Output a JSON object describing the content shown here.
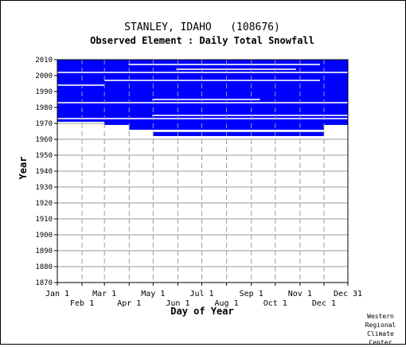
{
  "chart_data": {
    "type": "heatmap",
    "title": "STANLEY, IDAHO   (108676)",
    "subtitle": "Observed Element : Daily Total Snowfall",
    "xlabel": "Day of Year",
    "ylabel": "Year",
    "ylim": [
      1870,
      2010
    ],
    "y_ticks": [
      1870,
      1880,
      1890,
      1900,
      1910,
      1920,
      1930,
      1940,
      1950,
      1960,
      1970,
      1980,
      1990,
      2000,
      2010
    ],
    "x_ticks": [
      {
        "label": "Jan 1",
        "day": 1,
        "row": "upper"
      },
      {
        "label": "Feb 1",
        "day": 32,
        "row": "lower"
      },
      {
        "label": "Mar 1",
        "day": 60,
        "row": "upper"
      },
      {
        "label": "Apr 1",
        "day": 91,
        "row": "lower"
      },
      {
        "label": "May 1",
        "day": 121,
        "row": "upper"
      },
      {
        "label": "Jun 1",
        "day": 152,
        "row": "lower"
      },
      {
        "label": "Jul 1",
        "day": 182,
        "row": "upper"
      },
      {
        "label": "Aug 1",
        "day": 213,
        "row": "lower"
      },
      {
        "label": "Sep 1",
        "day": 244,
        "row": "upper"
      },
      {
        "label": "Oct 1",
        "day": 274,
        "row": "lower"
      },
      {
        "label": "Nov 1",
        "day": 305,
        "row": "upper"
      },
      {
        "label": "Dec 1",
        "day": 335,
        "row": "lower"
      },
      {
        "label": "Dec 31",
        "day": 365,
        "row": "upper"
      }
    ],
    "xlim": [
      1,
      365
    ],
    "grid": true,
    "data_color": "#0000ff",
    "coverage": [
      {
        "year_start": 1962,
        "year_end": 1965,
        "day_start": 121,
        "day_end": 335
      },
      {
        "year_start": 1966,
        "year_end": 1969,
        "day_start": 91,
        "day_end": 335
      },
      {
        "year_start": 1969,
        "year_end": 1971,
        "day_start": 60,
        "day_end": 365
      },
      {
        "year_start": 1971,
        "year_end": 2010,
        "day_start": 1,
        "day_end": 365
      }
    ],
    "gaps": [
      {
        "year": 1965,
        "day_start": 1,
        "day_end": 365
      },
      {
        "year": 1973,
        "day_start": 1,
        "day_end": 365
      },
      {
        "year": 1975,
        "day_start": 120,
        "day_end": 365
      },
      {
        "year": 1983,
        "day_start": 1,
        "day_end": 365
      },
      {
        "year": 1985,
        "day_start": 120,
        "day_end": 255
      },
      {
        "year": 1994,
        "day_start": 1,
        "day_end": 60
      },
      {
        "year": 1997,
        "day_start": 60,
        "day_end": 330
      },
      {
        "year": 2002,
        "day_start": 1,
        "day_end": 365
      },
      {
        "year": 2004,
        "day_start": 150,
        "day_end": 300
      },
      {
        "year": 2007,
        "day_start": 90,
        "day_end": 330
      }
    ]
  },
  "credit": [
    "Western",
    "Regional",
    "Climate",
    "Center"
  ],
  "colors": {
    "data": "#0000ff",
    "grid": "#999999",
    "axis": "#000000"
  }
}
